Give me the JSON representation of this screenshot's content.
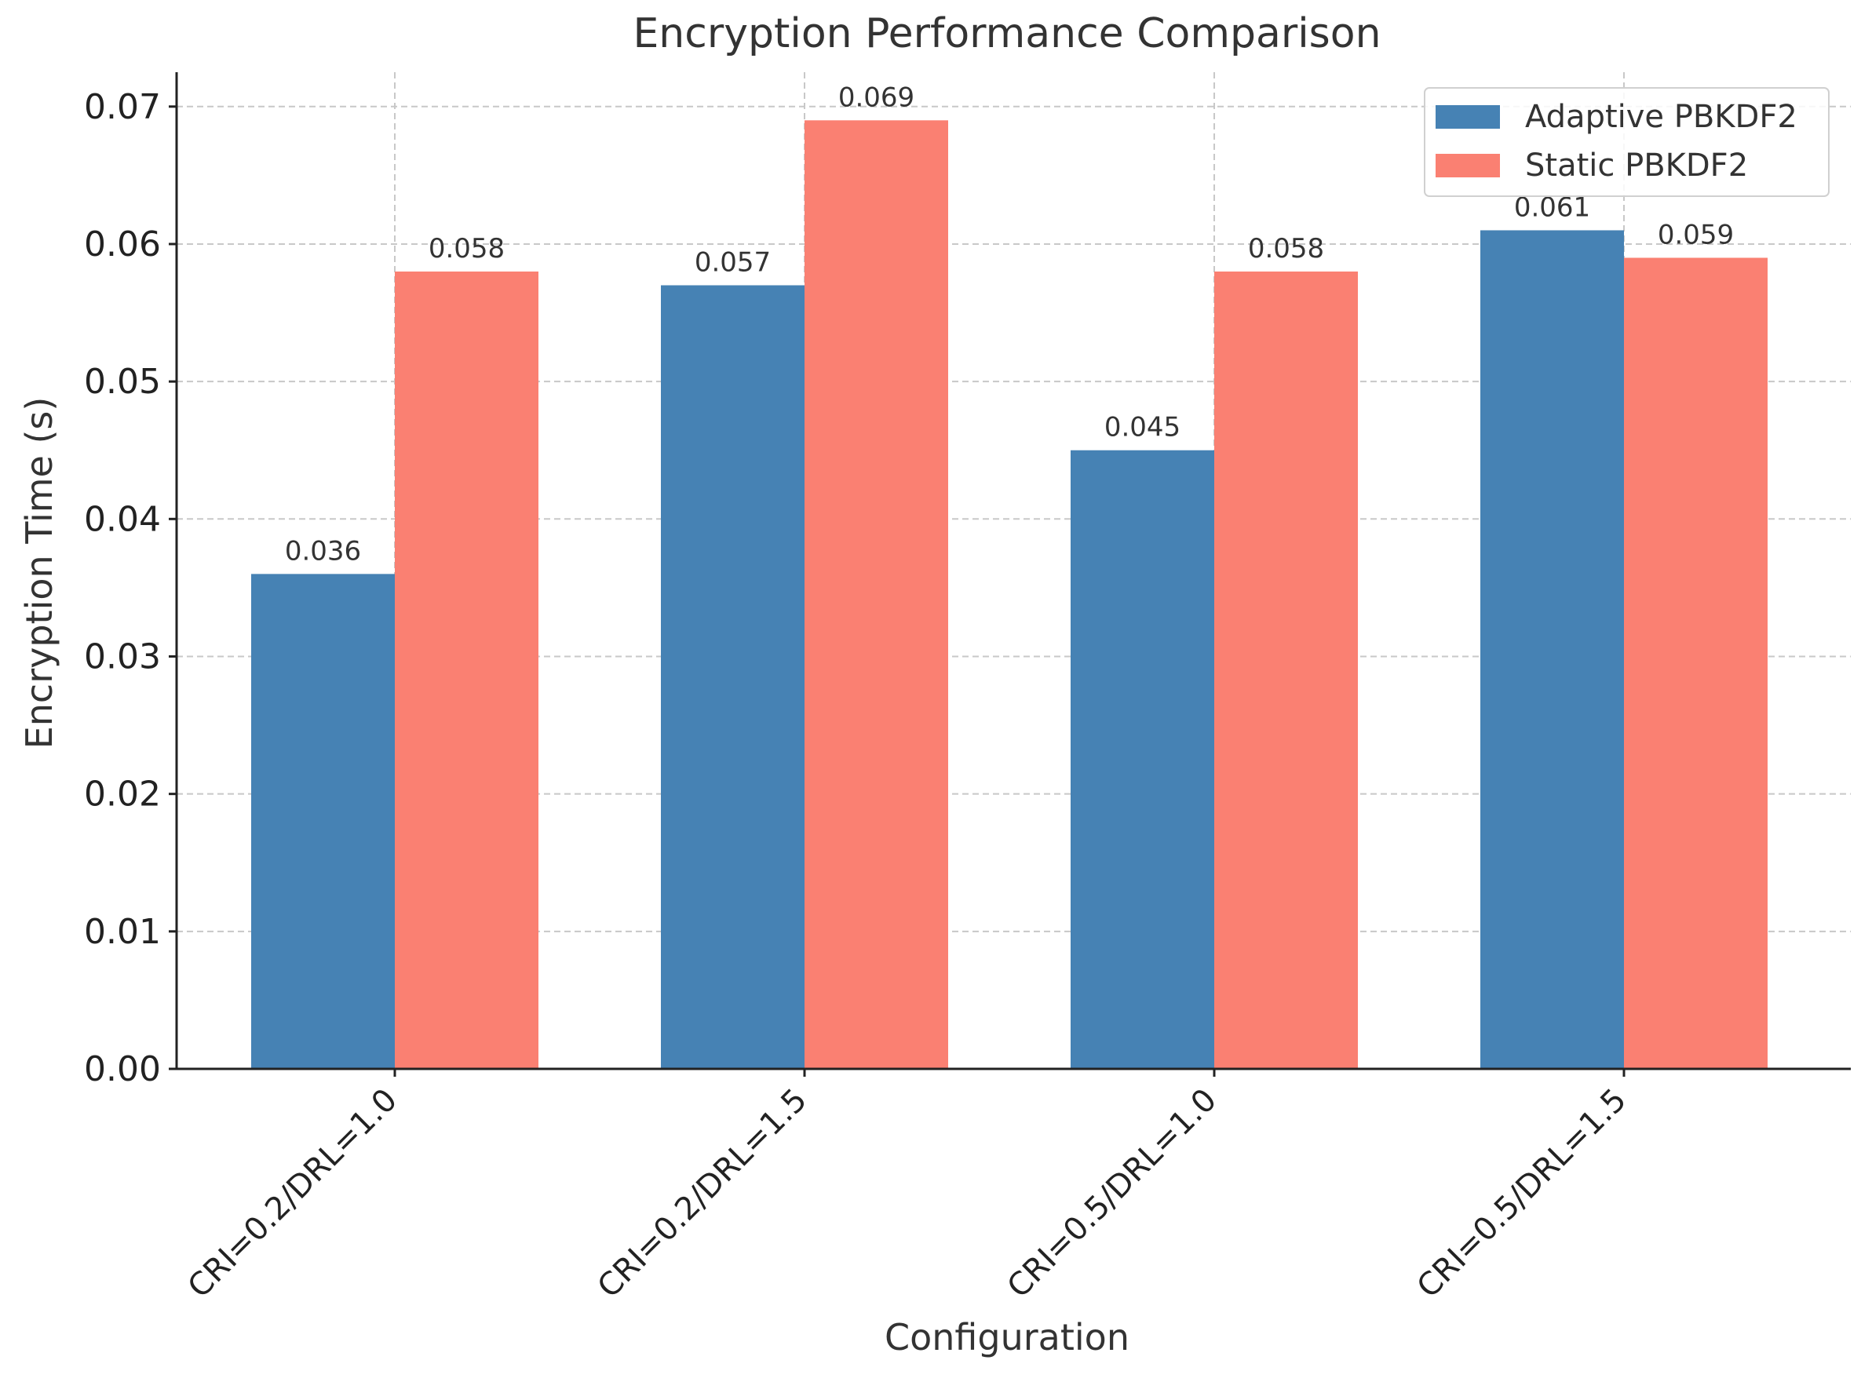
{
  "chart_data": {
    "type": "bar",
    "title": "Encryption Performance Comparison",
    "xlabel": "Configuration",
    "ylabel": "Encryption Time (s)",
    "categories": [
      "CRI=0.2/DRL=1.0",
      "CRI=0.2/DRL=1.5",
      "CRI=0.5/DRL=1.0",
      "CRI=0.5/DRL=1.5"
    ],
    "series": [
      {
        "name": "Adaptive PBKDF2",
        "color": "#4682b4",
        "values": [
          0.036,
          0.057,
          0.045,
          0.061
        ],
        "labels": [
          "0.036",
          "0.057",
          "0.045",
          "0.061"
        ]
      },
      {
        "name": "Static PBKDF2",
        "color": "#fa8072",
        "values": [
          0.058,
          0.069,
          0.058,
          0.059
        ],
        "labels": [
          "0.058",
          "0.069",
          "0.058",
          "0.059"
        ]
      }
    ],
    "ylim": [
      0,
      0.0725
    ],
    "yticks": [
      0,
      0.01,
      0.02,
      0.03,
      0.04,
      0.05,
      0.06,
      0.07
    ],
    "ytick_labels": [
      "0.00",
      "0.01",
      "0.02",
      "0.03",
      "0.04",
      "0.05",
      "0.06",
      "0.07"
    ],
    "grid": true,
    "legend_position": "top-right"
  }
}
